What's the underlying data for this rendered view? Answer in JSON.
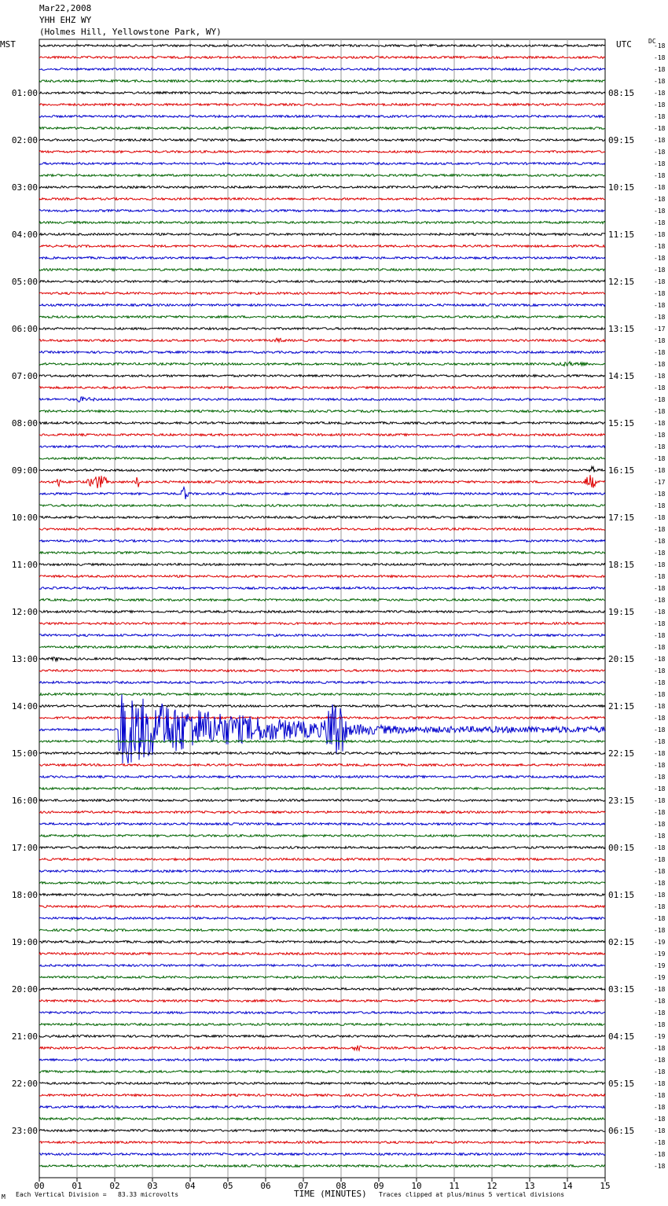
{
  "header": {
    "date": "Mar22,2008",
    "station": "YHH EHZ WY",
    "location": "(Holmes Hill, Yellowstone Park, WY)"
  },
  "left_axis_title": "MST",
  "right_axis_title": "UTC",
  "dc_title": "DC",
  "footer": {
    "left_mark": "M",
    "scale_note": "Each Vertical Division =   83.33 microvolts",
    "xlabel": "TIME (MINUTES)",
    "clip_note": "Traces clipped at plus/minus 5 vertical divisions"
  },
  "colors": {
    "trace_cycle": [
      "#000000",
      "#dd0000",
      "#0000cc",
      "#006400"
    ],
    "grid": "#999999"
  },
  "chart_data": {
    "type": "line",
    "title": "YHH EHZ WY",
    "xlabel": "TIME (MINUTES)",
    "xlim": [
      0,
      15
    ],
    "x_ticks": [
      "00",
      "01",
      "02",
      "03",
      "04",
      "05",
      "06",
      "07",
      "08",
      "09",
      "10",
      "11",
      "12",
      "13",
      "14",
      "15"
    ],
    "rows_per_hour": 4,
    "row_count": 96,
    "mst_hour_labels": [
      "",
      "01:00",
      "02:00",
      "03:00",
      "04:00",
      "05:00",
      "06:00",
      "07:00",
      "08:00",
      "09:00",
      "10:00",
      "11:00",
      "12:00",
      "13:00",
      "14:00",
      "15:00",
      "16:00",
      "17:00",
      "18:00",
      "19:00",
      "20:00",
      "21:00",
      "22:00",
      "23:00"
    ],
    "utc_hour_labels": [
      "",
      "08:15",
      "09:15",
      "10:15",
      "11:15",
      "12:15",
      "13:15",
      "14:15",
      "15:15",
      "16:15",
      "17:15",
      "18:15",
      "19:15",
      "20:15",
      "21:15",
      "22:15",
      "23:15",
      "00:15",
      "01:15",
      "02:15",
      "03:15",
      "04:15",
      "05:15",
      "06:15"
    ],
    "dc_offsets": [
      "-18",
      "-18",
      "-18",
      "-18",
      "-18",
      "-18",
      "-18",
      "-18",
      "-18",
      "-18",
      "-18",
      "-18",
      "-18",
      "-18",
      "-18",
      "-18",
      "-18",
      "-18",
      "-18",
      "-18",
      "-18",
      "-18",
      "-18",
      "-18",
      "-17",
      "-18",
      "-18",
      "-18",
      "-18",
      "-18",
      "-18",
      "-18",
      "-18",
      "-18",
      "-18",
      "-18",
      "-18",
      "-17",
      "-18",
      "-18",
      "-18",
      "-18",
      "-18",
      "-18",
      "-18",
      "-18",
      "-18",
      "-18",
      "-18",
      "-18",
      "-18",
      "-18",
      "-18",
      "-18",
      "-18",
      "-18",
      "-18",
      "-18",
      "-18",
      "-18",
      "-18",
      "-18",
      "-18",
      "-18",
      "-18",
      "-18",
      "-18",
      "-18",
      "-18",
      "-18",
      "-18",
      "-18",
      "-18",
      "-18",
      "-18",
      "-18",
      "-19",
      "-19",
      "-19",
      "-19",
      "-18",
      "-18",
      "-18",
      "-18",
      "-19",
      "-18",
      "-18",
      "-18",
      "-18",
      "-18",
      "-18",
      "-18",
      "-18",
      "-18",
      "-18",
      "-18"
    ],
    "events": [
      {
        "row": 25,
        "start_min": 6.1,
        "end_min": 6.6,
        "amp": 3
      },
      {
        "row": 27,
        "start_min": 13.2,
        "end_min": 15.0,
        "amp": 3
      },
      {
        "row": 30,
        "start_min": 1.0,
        "end_min": 3.5,
        "amp": 4
      },
      {
        "row": 36,
        "start_min": 14.5,
        "end_min": 14.8,
        "amp": 6
      },
      {
        "row": 37,
        "start_min": 0.4,
        "end_min": 0.6,
        "amp": 7
      },
      {
        "row": 37,
        "start_min": 1.2,
        "end_min": 1.9,
        "amp": 9
      },
      {
        "row": 37,
        "start_min": 2.5,
        "end_min": 2.7,
        "amp": 8
      },
      {
        "row": 37,
        "start_min": 14.4,
        "end_min": 14.8,
        "amp": 10
      },
      {
        "row": 38,
        "start_min": 3.7,
        "end_min": 4.0,
        "amp": 9
      },
      {
        "row": 52,
        "start_min": 0.2,
        "end_min": 0.7,
        "amp": 3
      },
      {
        "row": 58,
        "start_min": 2.1,
        "end_min": 15.0,
        "amp": 50
      },
      {
        "row": 58,
        "start_min": 7.5,
        "end_min": 8.2,
        "amp": 45
      },
      {
        "row": 85,
        "start_min": 8.3,
        "end_min": 8.6,
        "amp": 6
      }
    ]
  }
}
